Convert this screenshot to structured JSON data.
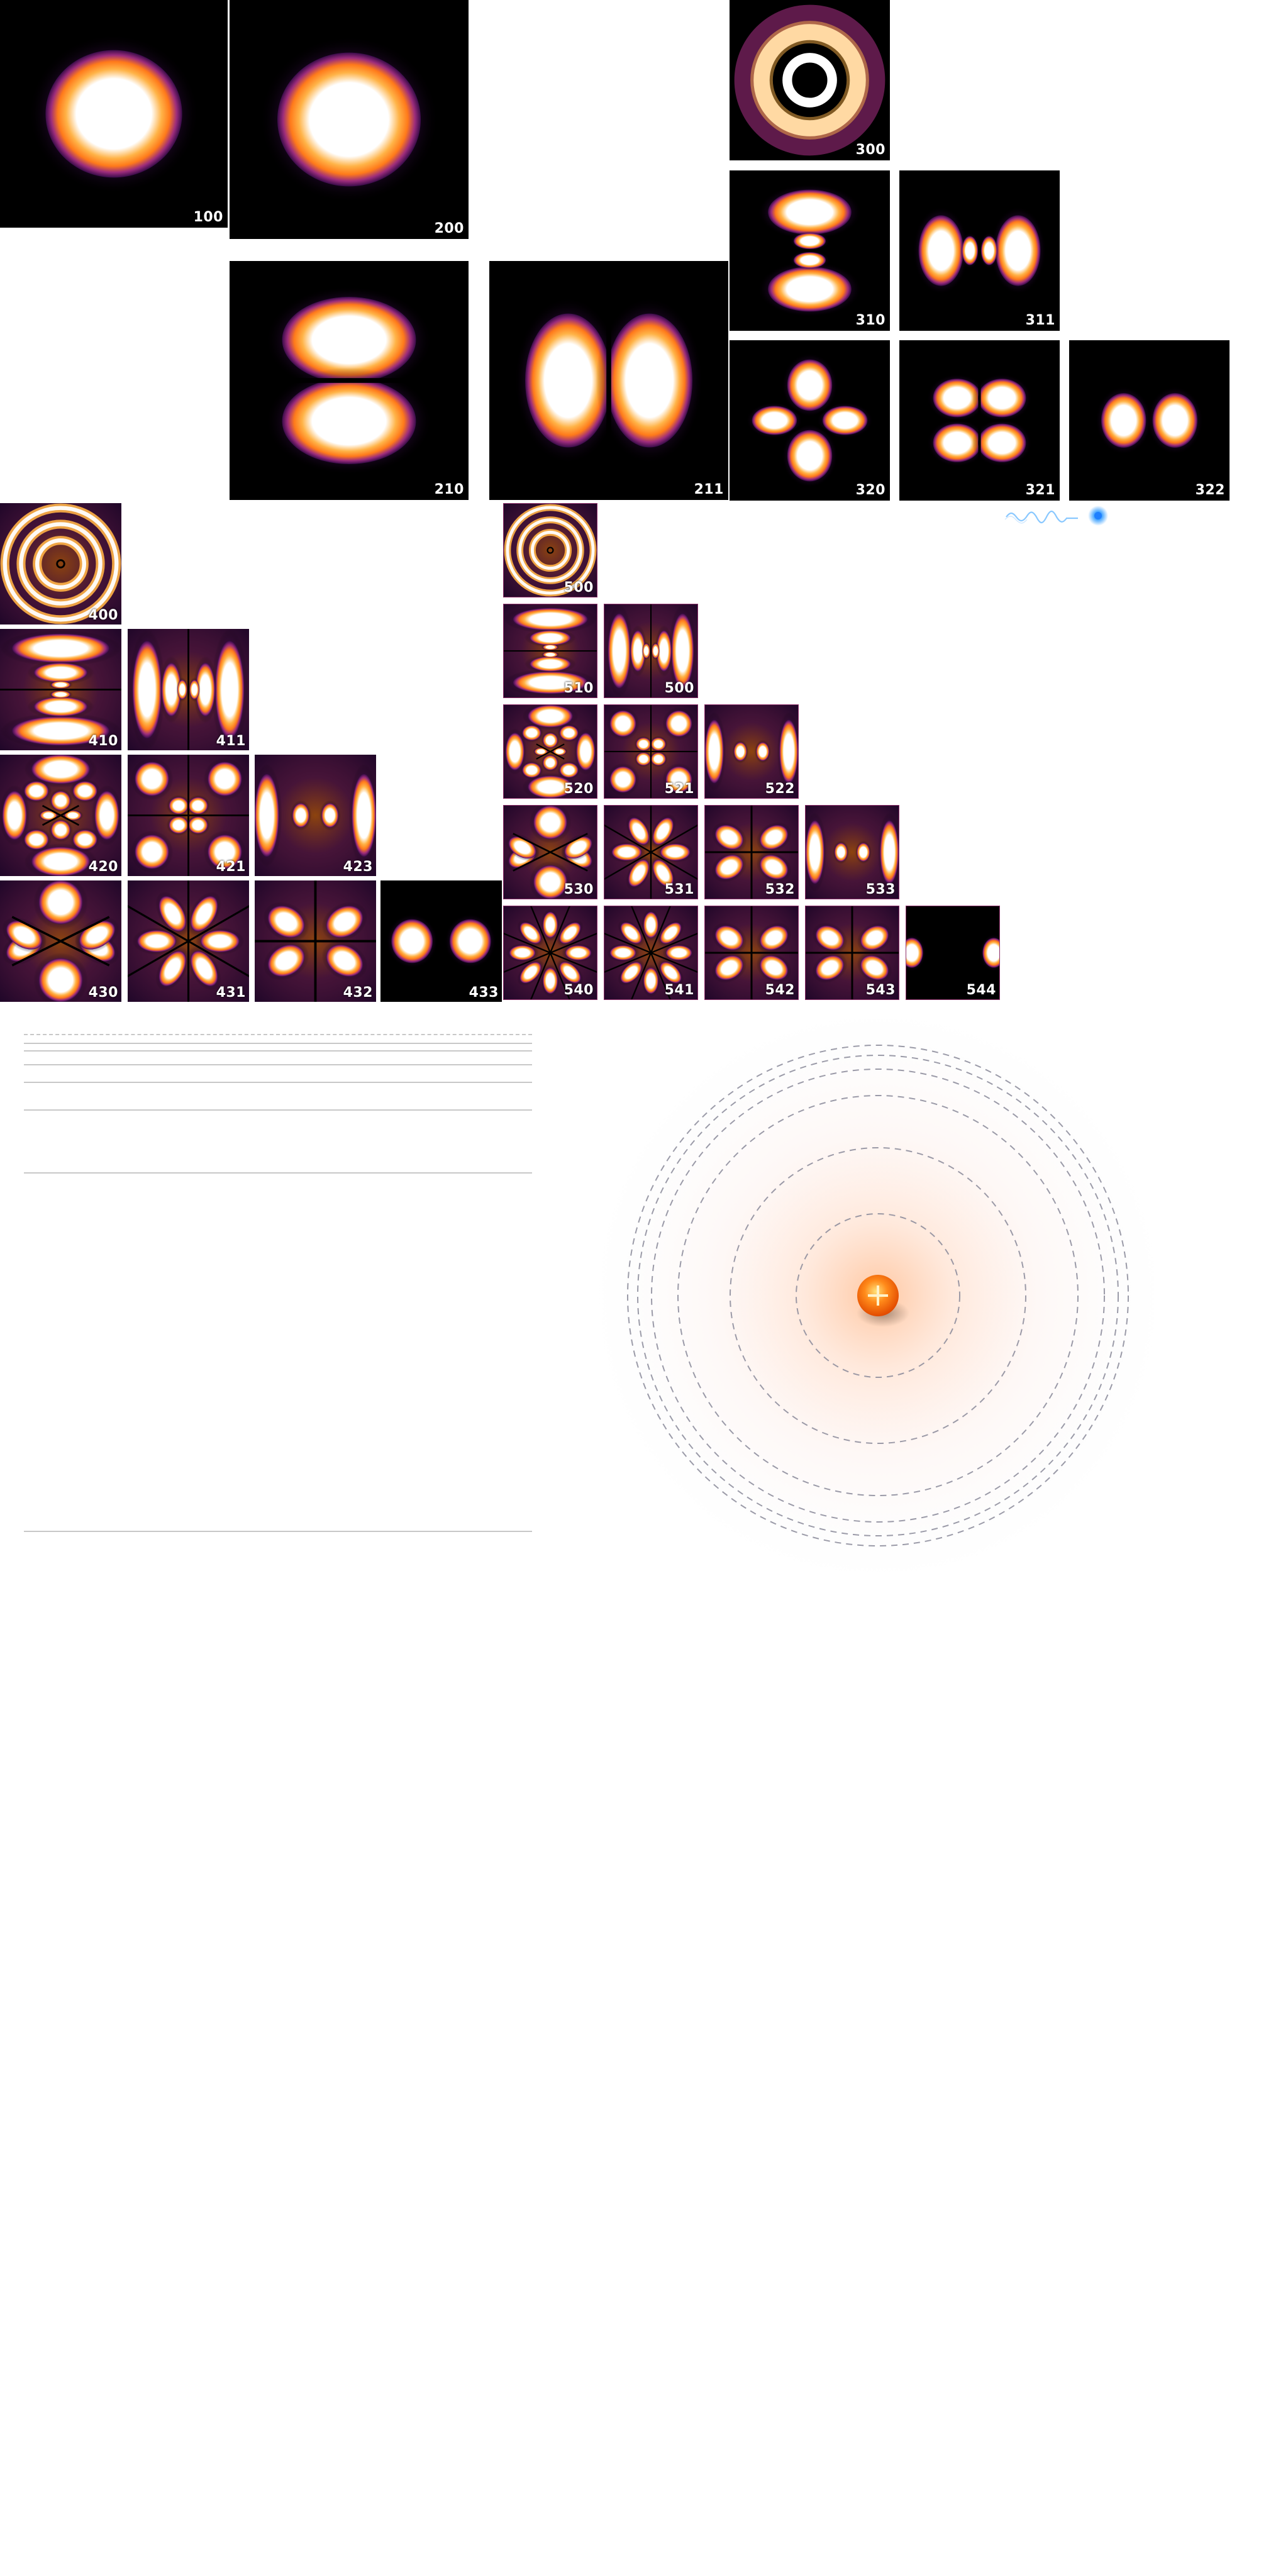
{
  "orbitals": [
    {
      "id": "o100",
      "label": "100",
      "kind": "s"
    },
    {
      "id": "o200",
      "label": "200",
      "kind": "s"
    },
    {
      "id": "o300",
      "label": "300",
      "kind": "ring"
    },
    {
      "id": "o310",
      "label": "310",
      "kind": "pz_ring"
    },
    {
      "id": "o311",
      "label": "311",
      "kind": "px_ring"
    },
    {
      "id": "o210",
      "label": "210",
      "kind": "pz"
    },
    {
      "id": "o211",
      "label": "211",
      "kind": "px"
    },
    {
      "id": "o320",
      "label": "320",
      "kind": "dz2"
    },
    {
      "id": "o321",
      "label": "321",
      "kind": "dclover"
    },
    {
      "id": "o322",
      "label": "322",
      "kind": "lobes2"
    },
    {
      "id": "o400",
      "label": "400",
      "kind": "rings"
    },
    {
      "id": "o410",
      "label": "410",
      "kind": "pz_rings"
    },
    {
      "id": "o411",
      "label": "411",
      "kind": "px_rings"
    },
    {
      "id": "o420",
      "label": "420",
      "kind": "dz2_rings"
    },
    {
      "id": "o421",
      "label": "421",
      "kind": "clover_rings"
    },
    {
      "id": "o423",
      "label": "423",
      "kind": "lobes2_rings"
    },
    {
      "id": "o430",
      "label": "430",
      "kind": "f_big"
    },
    {
      "id": "o431",
      "label": "431",
      "kind": "f_six"
    },
    {
      "id": "o432",
      "label": "432",
      "kind": "f_four"
    },
    {
      "id": "o433",
      "label": "433",
      "kind": "lobes2_big"
    },
    {
      "id": "o500",
      "label": "500",
      "kind": "rings"
    },
    {
      "id": "o510",
      "label": "510",
      "kind": "pz_rings"
    },
    {
      "id": "o500b",
      "label": "500",
      "kind": "px_rings"
    },
    {
      "id": "o520",
      "label": "520",
      "kind": "dz2_rings"
    },
    {
      "id": "o521",
      "label": "521",
      "kind": "clover_rings"
    },
    {
      "id": "o522",
      "label": "522",
      "kind": "lobes2_rings"
    },
    {
      "id": "o530",
      "label": "530",
      "kind": "f_big"
    },
    {
      "id": "o531",
      "label": "531",
      "kind": "f_six"
    },
    {
      "id": "o532",
      "label": "532",
      "kind": "f_four"
    },
    {
      "id": "o533",
      "label": "533",
      "kind": "lobes2_rings"
    },
    {
      "id": "o540",
      "label": "540",
      "kind": "g_eight"
    },
    {
      "id": "o541",
      "label": "541",
      "kind": "g_eight"
    },
    {
      "id": "o542",
      "label": "542",
      "kind": "f_four"
    },
    {
      "id": "o543",
      "label": "543",
      "kind": "f_four"
    },
    {
      "id": "o544",
      "label": "544",
      "kind": "lobes2_edge"
    }
  ],
  "colors": {
    "hot_core": "#ffffff",
    "hot_mid": "#ffb347",
    "hot_orange": "#ff7a1a",
    "hot_magenta": "#9c2c7c",
    "hot_purple": "#3a0c4a",
    "background": "#000000",
    "nucleus": "#ff6a00",
    "photon": "#3aa0ff"
  },
  "icons": {
    "nucleus": "plus-nucleus-icon",
    "photon": "photon-wave-icon"
  }
}
